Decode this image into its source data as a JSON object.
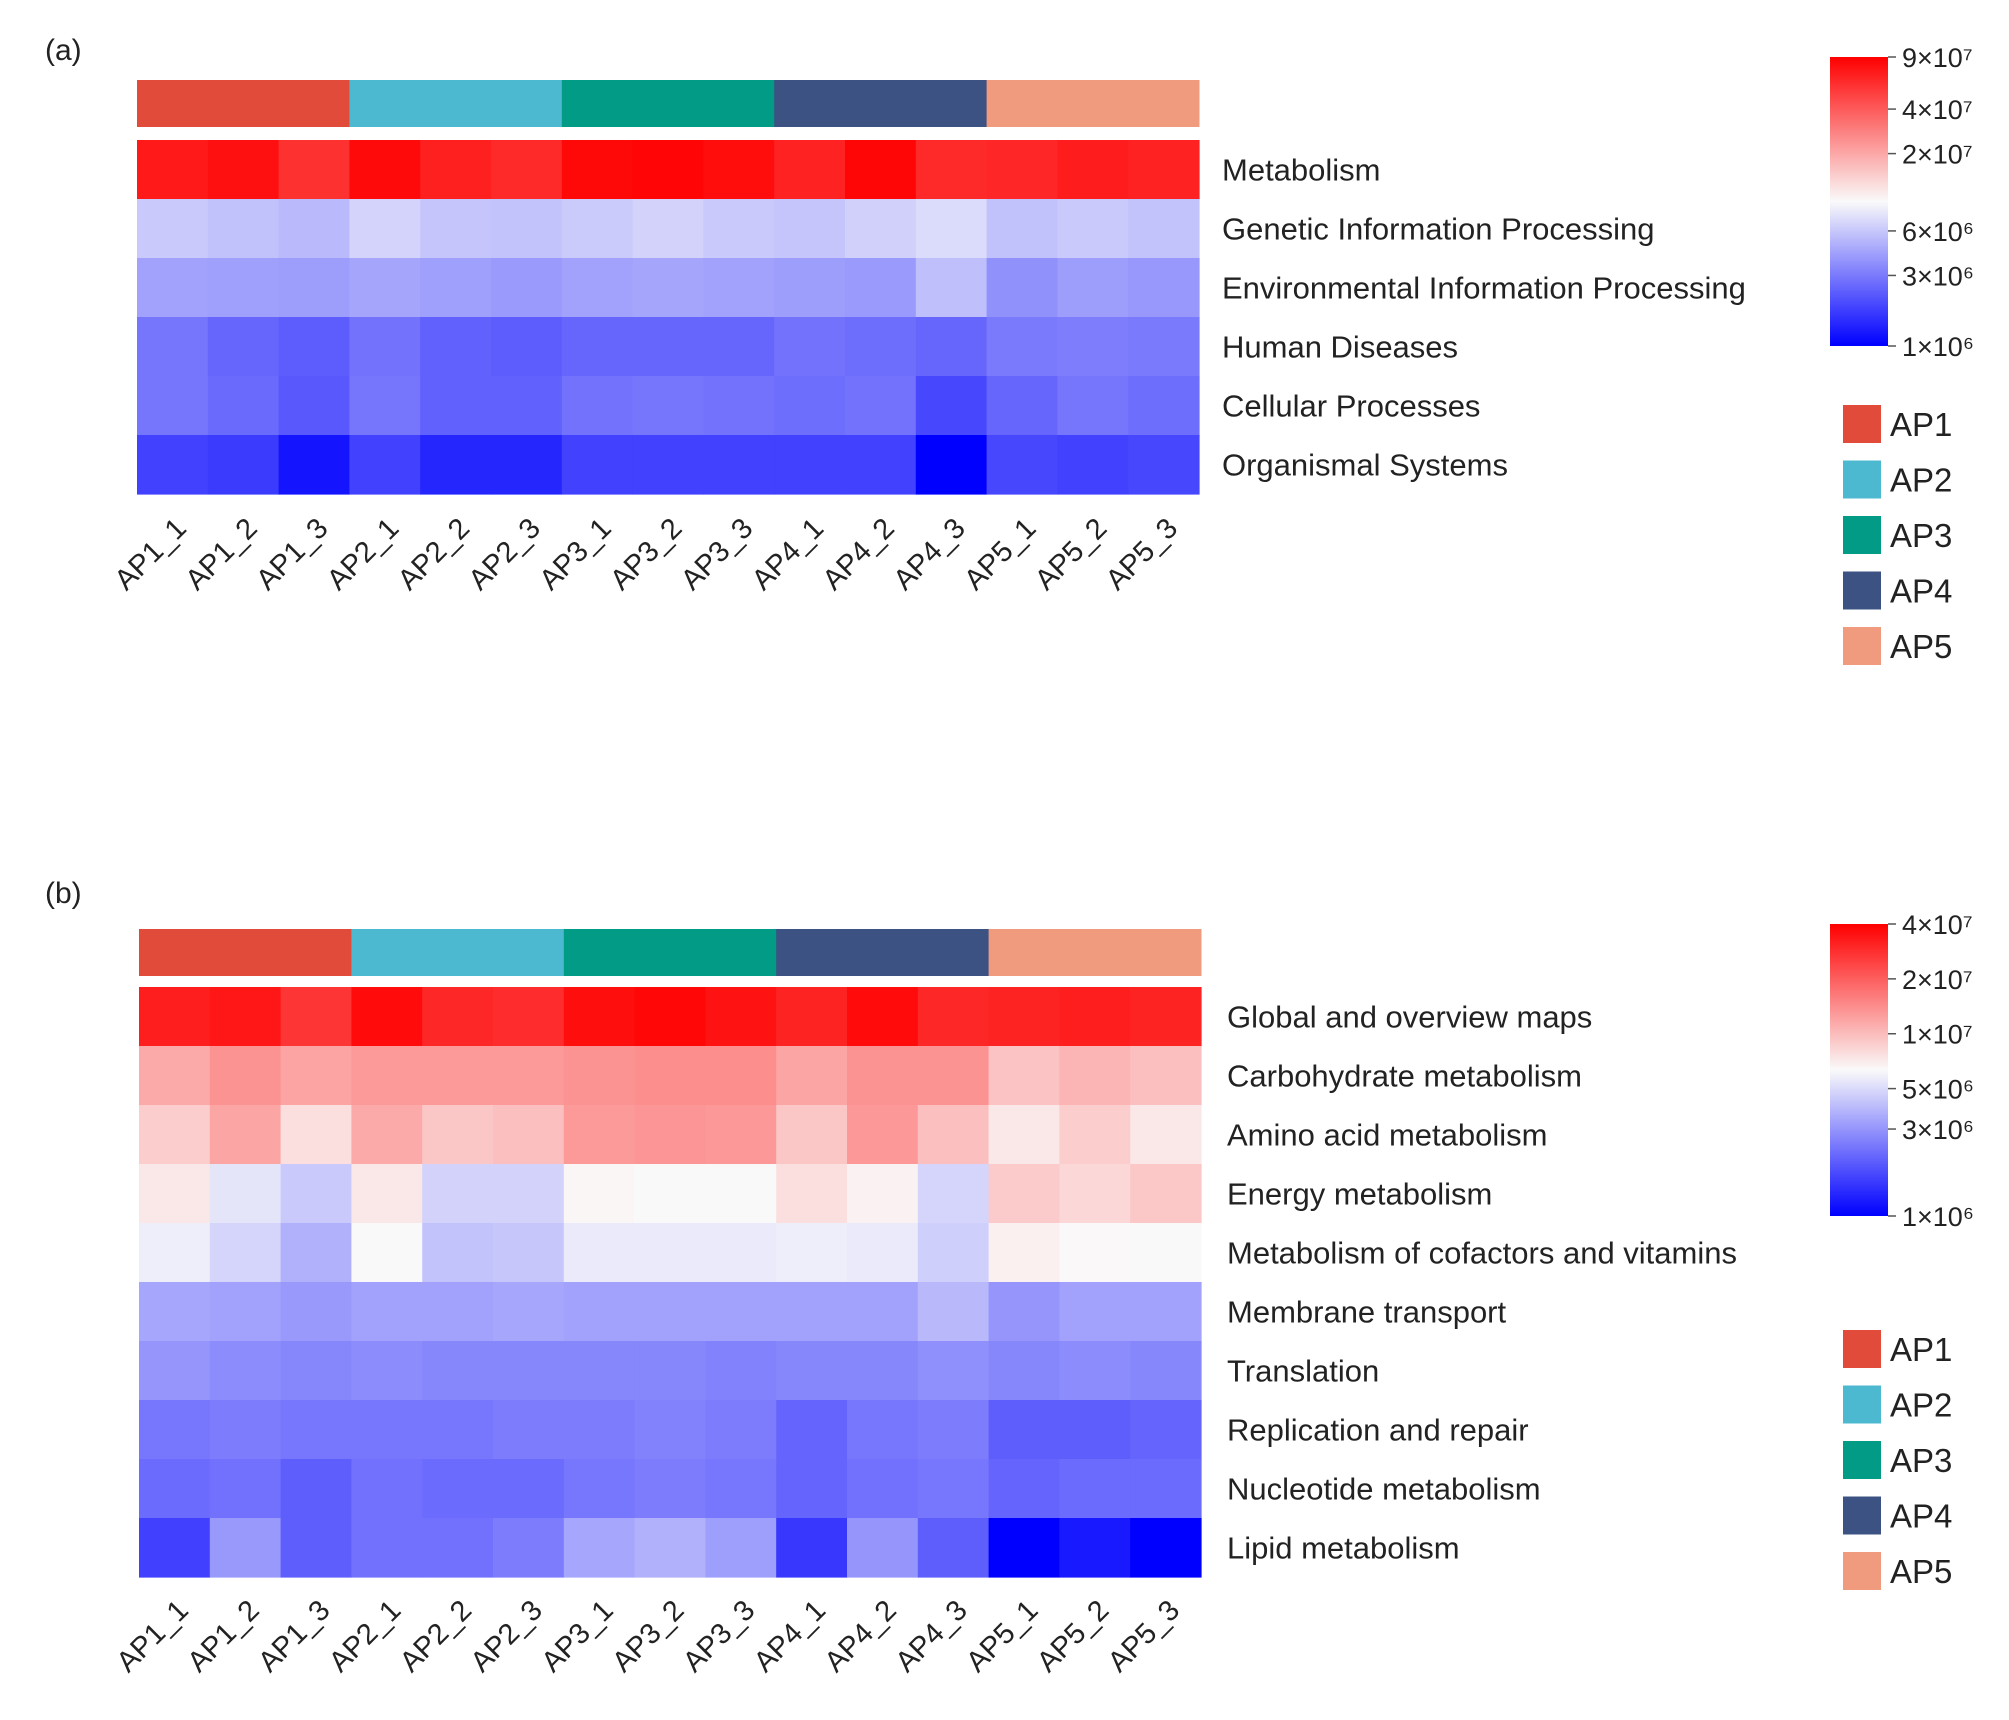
{
  "group_colors": {
    "AP1": "#e04b3a",
    "AP2": "#4db9d1",
    "AP3": "#019b86",
    "AP4": "#3b5283",
    "AP5": "#f09a7e"
  },
  "legend_groups": [
    "AP1",
    "AP2",
    "AP3",
    "AP4",
    "AP5"
  ],
  "chart_data": [
    {
      "type": "heatmap",
      "panel_label": "(a)",
      "columns": [
        "AP1_1",
        "AP1_2",
        "AP1_3",
        "AP2_1",
        "AP2_2",
        "AP2_3",
        "AP3_1",
        "AP3_2",
        "AP3_3",
        "AP4_1",
        "AP4_2",
        "AP4_3",
        "AP5_1",
        "AP5_2",
        "AP5_3"
      ],
      "column_groups": [
        "AP1",
        "AP1",
        "AP1",
        "AP2",
        "AP2",
        "AP2",
        "AP3",
        "AP3",
        "AP3",
        "AP4",
        "AP4",
        "AP4",
        "AP5",
        "AP5",
        "AP5"
      ],
      "rows": [
        "Metabolism",
        "Genetic Information Processing",
        "Environmental Information Processing",
        "Human Diseases",
        "Cellular Processes",
        "Organismal Systems"
      ],
      "values": [
        [
          72000000,
          78000000,
          58000000,
          82000000,
          68000000,
          62000000,
          84000000,
          86000000,
          80000000,
          66000000,
          85000000,
          62000000,
          64000000,
          70000000,
          66000000
        ],
        [
          6100000,
          5700000,
          5300000,
          6700000,
          5900000,
          5800000,
          6200000,
          6600000,
          6100000,
          5900000,
          6500000,
          7200000,
          5700000,
          6100000,
          5800000
        ],
        [
          4300000,
          4200000,
          4100000,
          4400000,
          4200000,
          4000000,
          4300000,
          4400000,
          4300000,
          4100000,
          4000000,
          5600000,
          3700000,
          4100000,
          3900000
        ],
        [
          2900000,
          2500000,
          2300000,
          2800000,
          2400000,
          2300000,
          2500000,
          2500000,
          2500000,
          2800000,
          2700000,
          2500000,
          3000000,
          3100000,
          3000000
        ],
        [
          2900000,
          2600000,
          2200000,
          2900000,
          2400000,
          2400000,
          2800000,
          2900000,
          2800000,
          2700000,
          2800000,
          1900000,
          2500000,
          2900000,
          2700000
        ],
        [
          1800000,
          1700000,
          1200000,
          1800000,
          1400000,
          1400000,
          1800000,
          1800000,
          1800000,
          1800000,
          1800000,
          1000000,
          1900000,
          1800000,
          1900000
        ]
      ],
      "colorbar": {
        "ticks": [
          "9×10⁷",
          "4×10⁷",
          "2×10⁷",
          "6×10⁶",
          "3×10⁶",
          "1×10⁶"
        ],
        "colors": [
          "#ff0000",
          "#fafafa",
          "#0000ff"
        ],
        "scale": "log"
      },
      "xlabel": "",
      "ylabel": ""
    },
    {
      "type": "heatmap",
      "panel_label": "(b)",
      "columns": [
        "AP1_1",
        "AP1_2",
        "AP1_3",
        "AP2_1",
        "AP2_2",
        "AP2_3",
        "AP3_1",
        "AP3_2",
        "AP3_3",
        "AP4_1",
        "AP4_2",
        "AP4_3",
        "AP5_1",
        "AP5_2",
        "AP5_3"
      ],
      "column_groups": [
        "AP1",
        "AP1",
        "AP1",
        "AP2",
        "AP2",
        "AP2",
        "AP3",
        "AP3",
        "AP3",
        "AP4",
        "AP4",
        "AP4",
        "AP5",
        "AP5",
        "AP5"
      ],
      "rows": [
        "Global and overview maps",
        "Carbohydrate metabolism",
        "Amino acid metabolism",
        "Energy metabolism",
        "Metabolism of cofactors and vitamins",
        "Membrane transport",
        "Translation",
        "Replication and repair",
        "Nucleotide metabolism",
        "Lipid metabolism"
      ],
      "values": [
        [
          32000000,
          34000000,
          27000000,
          37000000,
          30000000,
          29000000,
          36000000,
          38000000,
          35000000,
          31000000,
          37000000,
          30000000,
          31000000,
          32000000,
          31000000
        ],
        [
          11500000,
          13500000,
          12000000,
          12800000,
          12800000,
          12800000,
          13500000,
          14000000,
          14000000,
          11800000,
          13500000,
          13500000,
          9500000,
          10500000,
          9800000
        ],
        [
          8800000,
          11800000,
          7700000,
          11500000,
          9300000,
          9800000,
          12800000,
          13300000,
          13000000,
          9300000,
          13000000,
          9800000,
          7200000,
          8800000,
          7200000
        ],
        [
          7300000,
          5400000,
          4400000,
          7300000,
          4700000,
          4700000,
          6500000,
          6300000,
          6300000,
          7800000,
          6700000,
          4800000,
          9000000,
          8200000,
          9200000
        ],
        [
          5800000,
          4800000,
          3700000,
          6300000,
          4200000,
          4300000,
          5600000,
          5600000,
          5600000,
          5800000,
          5600000,
          4600000,
          6800000,
          6400000,
          6300000
        ],
        [
          3400000,
          3300000,
          3100000,
          3300000,
          3300000,
          3400000,
          3300000,
          3300000,
          3300000,
          3300000,
          3300000,
          3900000,
          3000000,
          3300000,
          3300000
        ],
        [
          3000000,
          2800000,
          2700000,
          2800000,
          2700000,
          2700000,
          2700000,
          2700000,
          2600000,
          2700000,
          2700000,
          2900000,
          2700000,
          2800000,
          2700000
        ],
        [
          2400000,
          2500000,
          2400000,
          2400000,
          2400000,
          2500000,
          2500000,
          2600000,
          2500000,
          2100000,
          2400000,
          2500000,
          2000000,
          2000000,
          2100000
        ],
        [
          2200000,
          2300000,
          2000000,
          2300000,
          2200000,
          2200000,
          2400000,
          2500000,
          2400000,
          2100000,
          2300000,
          2400000,
          2100000,
          2200000,
          2200000
        ],
        [
          1600000,
          3100000,
          2000000,
          2300000,
          2300000,
          2500000,
          3400000,
          3700000,
          3200000,
          1500000,
          3000000,
          2000000,
          1000000,
          1200000,
          1000000
        ]
      ],
      "colorbar": {
        "ticks": [
          "4×10⁷",
          "2×10⁷",
          "1×10⁷",
          "5×10⁶",
          "3×10⁶",
          "1×10⁶"
        ],
        "colors": [
          "#ff0000",
          "#fafafa",
          "#0000ff"
        ],
        "scale": "log"
      },
      "xlabel": "",
      "ylabel": ""
    }
  ]
}
